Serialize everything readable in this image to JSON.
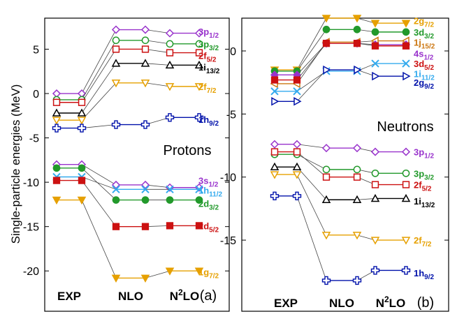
{
  "chart_data": [
    {
      "type": "line",
      "panel_tag": "(a)",
      "title": "Protons",
      "ylabel": "Single-particle energies (MeV)",
      "ylim": [
        -22.5,
        8.5
      ],
      "yticks": [
        5,
        0,
        -5,
        -10,
        -15,
        -20
      ],
      "ytick_labels": [
        "5",
        "0",
        "-5",
        "-10",
        "-15",
        "-20"
      ],
      "categories": [
        "EXP",
        "NLO",
        "N2LO"
      ],
      "category_labels": [
        {
          "base": "EXP",
          "sup": "",
          "rest": ""
        },
        {
          "base": "NLO",
          "sup": "",
          "rest": ""
        },
        {
          "base": "N",
          "sup": "2",
          "rest": "LO"
        }
      ],
      "series": [
        {
          "orbital": "3p",
          "sub": "1/2",
          "color": "#9933cc",
          "marker": "diamond-open",
          "values": [
            0.0,
            7.2,
            6.8
          ],
          "label_value": 7.0
        },
        {
          "orbital": "3p",
          "sub": "3/2",
          "color": "#22992b",
          "marker": "circle-open",
          "values": [
            -0.7,
            6.0,
            5.6
          ],
          "label_value": 5.6
        },
        {
          "orbital": "2f",
          "sub": "5/2",
          "color": "#cc1111",
          "marker": "square-open",
          "values": [
            -1.0,
            5.0,
            4.6
          ],
          "label_value": 4.3
        },
        {
          "orbital": "1i",
          "sub": "13/2",
          "color": "#000000",
          "marker": "triangle-open",
          "values": [
            -2.2,
            3.4,
            3.2
          ],
          "label_value": 3.0
        },
        {
          "orbital": "2f",
          "sub": "7/2",
          "color": "#e6a000",
          "marker": "tri-down-open",
          "values": [
            -3.0,
            1.2,
            0.8
          ],
          "label_value": 0.8
        },
        {
          "orbital": "1h",
          "sub": "9/2",
          "color": "#0011aa",
          "marker": "cross-open",
          "values": [
            -3.9,
            -3.5,
            -2.7
          ],
          "label_value": -2.9
        },
        {
          "orbital": "3s",
          "sub": "1/2",
          "color": "#9933cc",
          "marker": "diamond-open",
          "values": [
            -8.0,
            -10.3,
            -10.6
          ],
          "label_value": -9.8
        },
        {
          "orbital": "1h",
          "sub": "11/2",
          "color": "#33aaee",
          "marker": "x",
          "values": [
            -9.4,
            -10.8,
            -10.8
          ],
          "label_value": -10.9
        },
        {
          "orbital": "2d",
          "sub": "3/2",
          "color": "#22992b",
          "marker": "circle-filled",
          "values": [
            -8.4,
            -12.0,
            -12.0
          ],
          "label_value": -12.4
        },
        {
          "orbital": "2d",
          "sub": "5/2",
          "color": "#cc1111",
          "marker": "square-filled",
          "values": [
            -9.8,
            -15.0,
            -14.9
          ],
          "label_value": -14.9
        },
        {
          "orbital": "1g",
          "sub": "7/2",
          "color": "#e6a000",
          "marker": "tri-down-filled",
          "values": [
            -12.0,
            -20.8,
            -20.0
          ],
          "label_value": -20.1
        }
      ]
    },
    {
      "type": "line",
      "panel_tag": "(b)",
      "title": "Neutrons",
      "ylabel": "",
      "ylim": [
        -19.2,
        2.6
      ],
      "yticks": [
        0,
        -5,
        -10,
        -15
      ],
      "ytick_labels": [
        "0",
        "-5",
        "-10",
        "-15"
      ],
      "categories": [
        "EXP",
        "NLO",
        "N2LO"
      ],
      "category_labels": [
        {
          "base": "EXP",
          "sup": "",
          "rest": ""
        },
        {
          "base": "NLO",
          "sup": "",
          "rest": ""
        },
        {
          "base": "N",
          "sup": "2",
          "rest": "LO"
        }
      ],
      "series": [
        {
          "orbital": "2g",
          "sub": "7/2",
          "color": "#e6a000",
          "marker": "tri-down-filled",
          "values": [
            -1.5,
            2.6,
            2.2
          ],
          "label_value": 2.4
        },
        {
          "orbital": "3d",
          "sub": "3/2",
          "color": "#22992b",
          "marker": "circle-filled",
          "values": [
            -1.6,
            1.7,
            1.5
          ],
          "label_value": 1.5
        },
        {
          "orbital": "1j",
          "sub": "15/2",
          "color": "#cc7711",
          "marker": "tri-left-open",
          "values": [
            -2.6,
            0.7,
            0.8
          ],
          "label_value": 0.7
        },
        {
          "orbital": "4s",
          "sub": "1/2",
          "color": "#9933cc",
          "marker": "diamond-filled",
          "values": [
            -1.9,
            0.6,
            0.5
          ],
          "label_value": -0.2
        },
        {
          "orbital": "3d",
          "sub": "5/2",
          "color": "#cc1111",
          "marker": "square-filled",
          "values": [
            -2.3,
            0.6,
            0.4
          ],
          "label_value": -1.0
        },
        {
          "orbital": "1i",
          "sub": "11/2",
          "color": "#33aaee",
          "marker": "x",
          "values": [
            -3.2,
            -1.6,
            -1.0
          ],
          "label_value": -1.8
        },
        {
          "orbital": "2g",
          "sub": "9/2",
          "color": "#0011aa",
          "marker": "tri-right-open",
          "values": [
            -4.0,
            -1.5,
            -2.0
          ],
          "label_value": -2.5
        },
        {
          "orbital": "3p",
          "sub": "1/2",
          "color": "#9933cc",
          "marker": "diamond-open",
          "values": [
            -7.4,
            -7.7,
            -8.0
          ],
          "label_value": -8.0
        },
        {
          "orbital": "3p",
          "sub": "3/2",
          "color": "#22992b",
          "marker": "circle-open",
          "values": [
            -8.2,
            -9.4,
            -9.7
          ],
          "label_value": -9.7
        },
        {
          "orbital": "2f",
          "sub": "5/2",
          "color": "#cc1111",
          "marker": "square-open",
          "values": [
            -8.0,
            -10.0,
            -10.6
          ],
          "label_value": -10.6
        },
        {
          "orbital": "1i",
          "sub": "13/2",
          "color": "#000000",
          "marker": "triangle-open",
          "values": [
            -9.2,
            -11.8,
            -11.7
          ],
          "label_value": -11.9
        },
        {
          "orbital": "2f",
          "sub": "7/2",
          "color": "#e6a000",
          "marker": "tri-down-open",
          "values": [
            -9.8,
            -14.6,
            -15.0
          ],
          "label_value": -15.0
        },
        {
          "orbital": "1h",
          "sub": "9/2",
          "color": "#0011aa",
          "marker": "cross-open",
          "values": [
            -11.5,
            -18.2,
            -17.4
          ],
          "label_value": -17.6
        }
      ]
    }
  ]
}
